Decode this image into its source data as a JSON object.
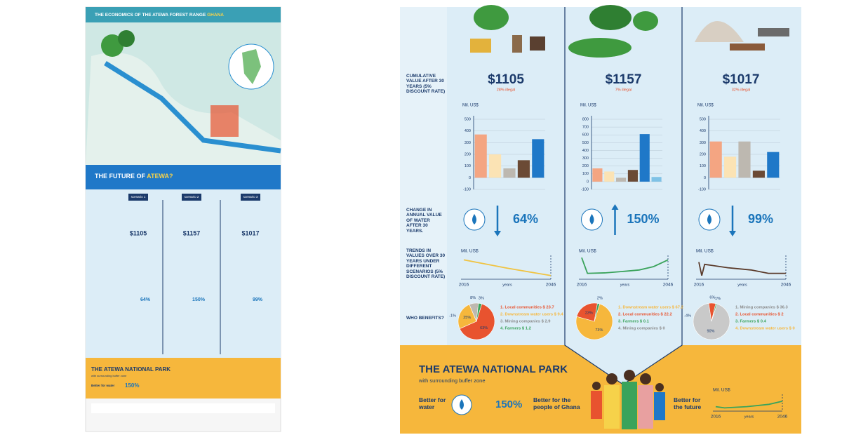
{
  "title": {
    "main": "THE ECONOMICS OF THE ATEWA FOREST RANGE",
    "accent": "GHANA"
  },
  "future": {
    "main": "THE FUTURE OF",
    "accent": "ATEWA?"
  },
  "row_labels": [
    "CUMULATIVE VALUE AFTER 30 YEARS (5% DISCOUNT RATE)",
    "CHANGE IN ANNUAL VALUE OF WATER AFTER 30 YEARS.",
    "TRENDS IN VALUES OVER 30 YEARS UNDER DIFFERENT SCENARIOS (5% DISCOUNT RATE)",
    "WHO BENEFITS?"
  ],
  "scenarios": [
    {
      "name": "scenario 1",
      "value": "$1105",
      "illegal": "28% illegal",
      "bars": {
        "axis_label": "Mil. US$",
        "ylim": [
          -100,
          500
        ],
        "yticks": [
          -100,
          0,
          100,
          200,
          300,
          400,
          500
        ],
        "values": [
          370,
          200,
          80,
          150,
          330
        ],
        "colors": [
          "#f4a582",
          "#fbe3b4",
          "#bdb8b0",
          "#6b4a35",
          "#1f78c8"
        ]
      },
      "change": {
        "label": "64%",
        "direction": "down"
      },
      "trend": {
        "axis_label": "Mil. US$",
        "x_label": "years",
        "x": [
          2016,
          2031,
          2046
        ],
        "values": [
          8,
          4.3,
          1
        ],
        "ylim": [
          0,
          10
        ],
        "color": "#f0c341"
      },
      "pie": {
        "values": [
          63,
          25,
          8,
          3
        ],
        "value_labels": [
          "63%",
          "25%",
          "8%",
          "3%"
        ],
        "colors": [
          "#e8532f",
          "#f6b73c",
          "#bdb8b0",
          "#3aa35b"
        ],
        "extra_labels": [
          "-1%"
        ]
      },
      "legend": [
        {
          "text": "1. Local communities $ 23.7",
          "color": "#e8532f"
        },
        {
          "text": "2. Downstream water users $ 9.4",
          "color": "#f6b73c"
        },
        {
          "text": "3. Mining companies $ 2.9",
          "color": "#8a8a8a"
        },
        {
          "text": "4. Farmers $ 1.2",
          "color": "#3aa35b"
        }
      ]
    },
    {
      "name": "scenario 2",
      "value": "$1157",
      "illegal": "7% illegal",
      "bars": {
        "axis_label": "Mil. US$",
        "ylim": [
          -100,
          800
        ],
        "yticks": [
          -100,
          0,
          100,
          200,
          300,
          400,
          500,
          600,
          700,
          800
        ],
        "values": [
          170,
          130,
          50,
          150,
          610,
          60
        ],
        "colors": [
          "#f4a582",
          "#fbe3b4",
          "#bdb8b0",
          "#6b4a35",
          "#1f78c8",
          "#7fc2e6"
        ]
      },
      "change": {
        "label": "150%",
        "direction": "up"
      },
      "trend": {
        "axis_label": "Mil. US$",
        "x_label": "years",
        "x": [
          2016,
          2018,
          2024,
          2030,
          2036,
          2041,
          2046
        ],
        "values": [
          9,
          2,
          2.2,
          2.8,
          3.5,
          5,
          8
        ],
        "ylim": [
          0,
          10
        ],
        "color": "#3aa35b"
      },
      "pie": {
        "values": [
          73,
          23,
          2
        ],
        "value_labels": [
          "73%",
          "23%",
          "2%"
        ],
        "colors": [
          "#f6b73c",
          "#e8532f",
          "#3aa35b"
        ],
        "extra_labels": []
      },
      "legend": [
        {
          "text": "1. Downstream water users $ 67.2",
          "color": "#f6b73c"
        },
        {
          "text": "2. Local communities $ 22.2",
          "color": "#e8532f"
        },
        {
          "text": "3. Farmers $ 0.1",
          "color": "#3aa35b"
        },
        {
          "text": "4. Mining companies $ 0",
          "color": "#8a8a8a"
        }
      ]
    },
    {
      "name": "scenario 3",
      "value": "$1017",
      "illegal": "32% illegal",
      "bars": {
        "axis_label": "Mil. US$",
        "ylim": [
          -100,
          500
        ],
        "yticks": [
          -100,
          0,
          100,
          200,
          300,
          400,
          500
        ],
        "values": [
          310,
          180,
          310,
          60,
          220
        ],
        "colors": [
          "#f4a582",
          "#fbe3b4",
          "#bdb8b0",
          "#6b4a35",
          "#1f78c8"
        ]
      },
      "change": {
        "label": "99%",
        "direction": "down"
      },
      "trend": {
        "axis_label": "Mil. US$",
        "x_label": "years",
        "x": [
          2016,
          2017,
          2018,
          2026,
          2034,
          2040,
          2046
        ],
        "values": [
          7,
          1,
          6,
          4.5,
          3.5,
          2,
          2
        ],
        "ylim": [
          0,
          10
        ],
        "color": "#5a3a2a"
      },
      "pie": {
        "values": [
          90,
          6,
          1
        ],
        "value_labels": [
          "90%",
          "6%",
          "1%"
        ],
        "colors": [
          "#c9c9c9",
          "#e8532f",
          "#3aa35b"
        ],
        "extra_labels": [
          "-4%"
        ]
      },
      "legend": [
        {
          "text": "1. Mining companies $ 36.3",
          "color": "#8a8a8a"
        },
        {
          "text": "2. Local communities $ 2",
          "color": "#e8532f"
        },
        {
          "text": "3. Farmers $ 0.4",
          "color": "#3aa35b"
        },
        {
          "text": "4. Downstream water users $ 0",
          "color": "#f6b73c"
        }
      ]
    }
  ],
  "park": {
    "title": "THE ATEWA NATIONAL PARK",
    "subtitle": "with surrounding buffer zone",
    "water": "Better for water",
    "water_change": "150%",
    "people": "Better for the people of Ghana",
    "future": "Better for the future",
    "trend": {
      "axis_label": "Mil. US$",
      "x_label": "years",
      "x": [
        2016,
        2020,
        2030,
        2040,
        2046
      ],
      "values": [
        2,
        1.2,
        2,
        3.5,
        5.5
      ],
      "ylim": [
        0,
        10
      ],
      "color": "#3aa35b"
    }
  }
}
